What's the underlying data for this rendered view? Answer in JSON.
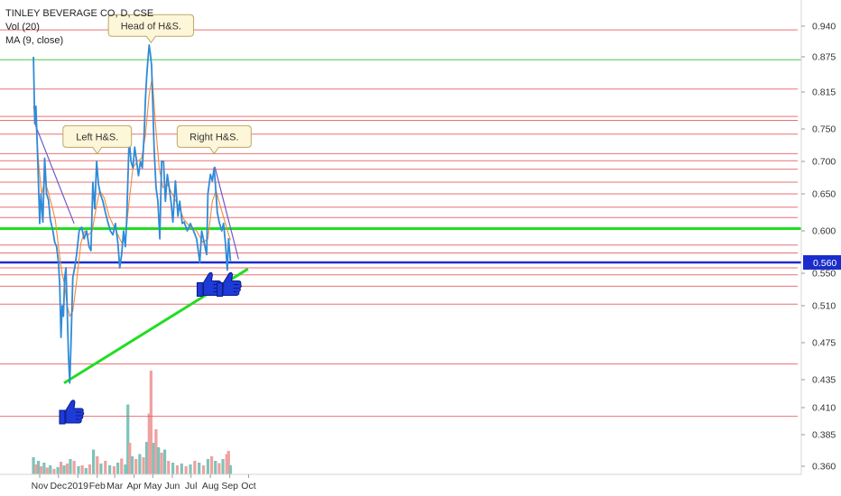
{
  "chart_data": {
    "type": "line",
    "title": "TINLEY BEVERAGE CO, D, CSE",
    "indicators": [
      "Vol (20)",
      "MA (9, close)"
    ],
    "x_ticks": [
      "Nov",
      "Dec",
      "2019",
      "Feb",
      "Mar",
      "Apr",
      "May",
      "Jun",
      "Jul",
      "Aug",
      "Sep",
      "Oct"
    ],
    "y_ticks": [
      "0.940",
      "0.875",
      "0.815",
      "0.750",
      "0.700",
      "0.650",
      "0.600",
      "0.560",
      "0.550",
      "0.510",
      "0.475",
      "0.435",
      "0.410",
      "0.385",
      "0.360"
    ],
    "last_price": "0.560",
    "colors": {
      "price": "#2f8bd8",
      "ma": "#f08a3c",
      "resistance": "#e8585a",
      "support_green": "#22dd22",
      "support_blue": "#1a2dcc",
      "trend_purple": "#6a5acd",
      "vol_up": "#7cc4b8",
      "vol_down": "#f0a0a0",
      "thumb": "#1e3bd8"
    },
    "annotations": [
      {
        "text": "Left H&S.",
        "date": "2019-02-01",
        "price": 0.712
      },
      {
        "text": "Head of H&S.",
        "date": "2019-04-28",
        "price": 0.905
      },
      {
        "text": "Right H&S.",
        "date": "2019-08-07",
        "price": 0.712
      }
    ],
    "thumbs_up": [
      {
        "date": "2018-12-20",
        "price": 0.405
      },
      {
        "date": "2019-07-28",
        "price": 0.535
      },
      {
        "date": "2019-08-29",
        "price": 0.535
      }
    ],
    "hlines": {
      "green": 0.603,
      "blue": 0.56,
      "light_green": 0.87
    },
    "red_hlines": [
      0.932,
      0.82,
      0.772,
      0.765,
      0.742,
      0.712,
      0.701,
      0.688,
      0.668,
      0.65,
      0.632,
      0.618,
      0.582,
      0.572,
      0.555,
      0.548,
      0.534,
      0.512,
      0.452,
      0.402
    ],
    "trendlines": [
      {
        "name": "support",
        "from": {
          "date": "2018-12-10",
          "price": 0.432
        },
        "to": {
          "date": "2019-09-30",
          "price": 0.554
        }
      },
      {
        "name": "down-left",
        "from": {
          "date": "2018-10-24",
          "price": 0.76
        },
        "to": {
          "date": "2018-12-26",
          "price": 0.61
        }
      },
      {
        "name": "down-right",
        "from": {
          "date": "2019-08-08",
          "price": 0.692
        },
        "to": {
          "date": "2019-09-15",
          "price": 0.564
        }
      }
    ],
    "series": [
      {
        "name": "Price",
        "points": [
          [
            "2018-10-22",
            0.875
          ],
          [
            "2018-10-24",
            0.76
          ],
          [
            "2018-10-26",
            0.79
          ],
          [
            "2018-10-29",
            0.7
          ],
          [
            "2018-11-01",
            0.61
          ],
          [
            "2018-11-03",
            0.65
          ],
          [
            "2018-11-06",
            0.612
          ],
          [
            "2018-11-09",
            0.705
          ],
          [
            "2018-11-12",
            0.65
          ],
          [
            "2018-11-15",
            0.642
          ],
          [
            "2018-11-18",
            0.615
          ],
          [
            "2018-11-22",
            0.6
          ],
          [
            "2018-11-25",
            0.586
          ],
          [
            "2018-11-28",
            0.58
          ],
          [
            "2018-12-01",
            0.56
          ],
          [
            "2018-12-03",
            0.535
          ],
          [
            "2018-12-05",
            0.48
          ],
          [
            "2018-12-07",
            0.51
          ],
          [
            "2018-12-09",
            0.5
          ],
          [
            "2018-12-11",
            0.545
          ],
          [
            "2018-12-13",
            0.555
          ],
          [
            "2018-12-15",
            0.505
          ],
          [
            "2018-12-17",
            0.46
          ],
          [
            "2018-12-19",
            0.432
          ],
          [
            "2018-12-21",
            0.475
          ],
          [
            "2018-12-24",
            0.545
          ],
          [
            "2018-12-27",
            0.555
          ],
          [
            "2018-12-30",
            0.57
          ],
          [
            "2019-01-03",
            0.6
          ],
          [
            "2019-01-07",
            0.605
          ],
          [
            "2019-01-11",
            0.59
          ],
          [
            "2019-01-15",
            0.6
          ],
          [
            "2019-01-19",
            0.58
          ],
          [
            "2019-01-22",
            0.575
          ],
          [
            "2019-01-25",
            0.668
          ],
          [
            "2019-01-28",
            0.63
          ],
          [
            "2019-01-31",
            0.7
          ],
          [
            "2019-02-03",
            0.665
          ],
          [
            "2019-02-06",
            0.65
          ],
          [
            "2019-02-10",
            0.64
          ],
          [
            "2019-02-14",
            0.625
          ],
          [
            "2019-02-18",
            0.612
          ],
          [
            "2019-02-22",
            0.6
          ],
          [
            "2019-02-26",
            0.595
          ],
          [
            "2019-03-02",
            0.61
          ],
          [
            "2019-03-06",
            0.585
          ],
          [
            "2019-03-09",
            0.555
          ],
          [
            "2019-03-12",
            0.57
          ],
          [
            "2019-03-15",
            0.6
          ],
          [
            "2019-03-18",
            0.58
          ],
          [
            "2019-03-20",
            0.612
          ],
          [
            "2019-03-24",
            0.735
          ],
          [
            "2019-03-27",
            0.7
          ],
          [
            "2019-03-30",
            0.69
          ],
          [
            "2019-04-02",
            0.722
          ],
          [
            "2019-04-05",
            0.7
          ],
          [
            "2019-04-08",
            0.678
          ],
          [
            "2019-04-11",
            0.7
          ],
          [
            "2019-04-14",
            0.69
          ],
          [
            "2019-04-17",
            0.74
          ],
          [
            "2019-04-19",
            0.8
          ],
          [
            "2019-04-21",
            0.84
          ],
          [
            "2019-04-23",
            0.87
          ],
          [
            "2019-04-25",
            0.9
          ],
          [
            "2019-04-27",
            0.88
          ],
          [
            "2019-04-29",
            0.86
          ],
          [
            "2019-05-01",
            0.79
          ],
          [
            "2019-05-03",
            0.72
          ],
          [
            "2019-05-06",
            0.66
          ],
          [
            "2019-05-09",
            0.64
          ],
          [
            "2019-05-12",
            0.59
          ],
          [
            "2019-05-15",
            0.7
          ],
          [
            "2019-05-18",
            0.7
          ],
          [
            "2019-05-21",
            0.64
          ],
          [
            "2019-05-24",
            0.68
          ],
          [
            "2019-05-27",
            0.66
          ],
          [
            "2019-05-30",
            0.64
          ],
          [
            "2019-06-02",
            0.612
          ],
          [
            "2019-06-06",
            0.67
          ],
          [
            "2019-06-10",
            0.62
          ],
          [
            "2019-06-13",
            0.64
          ],
          [
            "2019-06-17",
            0.61
          ],
          [
            "2019-06-20",
            0.612
          ],
          [
            "2019-06-25",
            0.6
          ],
          [
            "2019-06-30",
            0.61
          ],
          [
            "2019-07-05",
            0.6
          ],
          [
            "2019-07-10",
            0.59
          ],
          [
            "2019-07-15",
            0.56
          ],
          [
            "2019-07-18",
            0.6
          ],
          [
            "2019-07-22",
            0.585
          ],
          [
            "2019-07-26",
            0.57
          ],
          [
            "2019-07-28",
            0.65
          ],
          [
            "2019-08-01",
            0.68
          ],
          [
            "2019-08-04",
            0.67
          ],
          [
            "2019-08-07",
            0.69
          ],
          [
            "2019-08-09",
            0.665
          ],
          [
            "2019-08-12",
            0.625
          ],
          [
            "2019-08-15",
            0.612
          ],
          [
            "2019-08-19",
            0.6
          ],
          [
            "2019-08-22",
            0.61
          ],
          [
            "2019-08-25",
            0.585
          ],
          [
            "2019-08-28",
            0.553
          ],
          [
            "2019-08-30",
            0.59
          ],
          [
            "2019-09-02",
            0.562
          ]
        ]
      },
      {
        "name": "MA (9, close)",
        "points": [
          [
            "2018-10-22",
            0.79
          ],
          [
            "2018-10-26",
            0.76
          ],
          [
            "2018-10-30",
            0.7
          ],
          [
            "2018-11-04",
            0.65
          ],
          [
            "2018-11-09",
            0.67
          ],
          [
            "2018-11-14",
            0.655
          ],
          [
            "2018-11-20",
            0.635
          ],
          [
            "2018-11-26",
            0.615
          ],
          [
            "2018-12-01",
            0.58
          ],
          [
            "2018-12-06",
            0.552
          ],
          [
            "2018-12-11",
            0.535
          ],
          [
            "2018-12-15",
            0.51
          ],
          [
            "2018-12-19",
            0.5
          ],
          [
            "2018-12-24",
            0.505
          ],
          [
            "2018-12-30",
            0.54
          ],
          [
            "2019-01-06",
            0.585
          ],
          [
            "2019-01-12",
            0.6
          ],
          [
            "2019-01-18",
            0.595
          ],
          [
            "2019-01-24",
            0.6
          ],
          [
            "2019-01-30",
            0.63
          ],
          [
            "2019-02-05",
            0.655
          ],
          [
            "2019-02-12",
            0.645
          ],
          [
            "2019-02-20",
            0.62
          ],
          [
            "2019-02-28",
            0.605
          ],
          [
            "2019-03-06",
            0.595
          ],
          [
            "2019-03-12",
            0.585
          ],
          [
            "2019-03-18",
            0.59
          ],
          [
            "2019-03-24",
            0.64
          ],
          [
            "2019-03-30",
            0.69
          ],
          [
            "2019-04-06",
            0.7
          ],
          [
            "2019-04-13",
            0.705
          ],
          [
            "2019-04-19",
            0.74
          ],
          [
            "2019-04-25",
            0.81
          ],
          [
            "2019-04-30",
            0.84
          ],
          [
            "2019-05-05",
            0.76
          ],
          [
            "2019-05-11",
            0.69
          ],
          [
            "2019-05-17",
            0.66
          ],
          [
            "2019-05-24",
            0.665
          ],
          [
            "2019-06-01",
            0.65
          ],
          [
            "2019-06-10",
            0.635
          ],
          [
            "2019-06-20",
            0.615
          ],
          [
            "2019-06-30",
            0.605
          ],
          [
            "2019-07-10",
            0.6
          ],
          [
            "2019-07-20",
            0.585
          ],
          [
            "2019-07-28",
            0.59
          ],
          [
            "2019-08-04",
            0.64
          ],
          [
            "2019-08-10",
            0.655
          ],
          [
            "2019-08-18",
            0.63
          ],
          [
            "2019-08-25",
            0.61
          ],
          [
            "2019-09-02",
            0.588
          ]
        ]
      }
    ],
    "volume": [
      [
        "2018-10-22",
        0.38,
        1
      ],
      [
        "2018-10-26",
        0.22,
        0
      ],
      [
        "2018-10-30",
        0.3,
        1
      ],
      [
        "2018-11-03",
        0.18,
        0
      ],
      [
        "2018-11-08",
        0.26,
        1
      ],
      [
        "2018-11-13",
        0.15,
        0
      ],
      [
        "2018-11-18",
        0.2,
        1
      ],
      [
        "2018-11-24",
        0.12,
        0
      ],
      [
        "2018-11-30",
        0.16,
        1
      ],
      [
        "2018-12-05",
        0.28,
        0
      ],
      [
        "2018-12-10",
        0.2,
        1
      ],
      [
        "2018-12-15",
        0.24,
        0
      ],
      [
        "2018-12-20",
        0.34,
        1
      ],
      [
        "2018-12-26",
        0.3,
        0
      ],
      [
        "2019-01-02",
        0.18,
        1
      ],
      [
        "2019-01-08",
        0.2,
        0
      ],
      [
        "2019-01-14",
        0.14,
        1
      ],
      [
        "2019-01-20",
        0.22,
        0
      ],
      [
        "2019-01-26",
        0.55,
        1
      ],
      [
        "2019-02-01",
        0.4,
        0
      ],
      [
        "2019-02-07",
        0.24,
        1
      ],
      [
        "2019-02-14",
        0.3,
        0
      ],
      [
        "2019-02-21",
        0.2,
        1
      ],
      [
        "2019-02-28",
        0.18,
        0
      ],
      [
        "2019-03-06",
        0.26,
        1
      ],
      [
        "2019-03-12",
        0.35,
        0
      ],
      [
        "2019-03-18",
        0.22,
        1
      ],
      [
        "2019-03-22",
        1.55,
        1
      ],
      [
        "2019-03-25",
        0.7,
        0
      ],
      [
        "2019-03-29",
        0.4,
        1
      ],
      [
        "2019-04-04",
        0.34,
        0
      ],
      [
        "2019-04-10",
        0.45,
        1
      ],
      [
        "2019-04-16",
        0.38,
        0
      ],
      [
        "2019-04-21",
        0.72,
        1
      ],
      [
        "2019-04-25",
        1.35,
        0
      ],
      [
        "2019-04-28",
        2.3,
        0
      ],
      [
        "2019-05-02",
        0.7,
        1
      ],
      [
        "2019-05-06",
        1.0,
        0
      ],
      [
        "2019-05-10",
        0.6,
        1
      ],
      [
        "2019-05-15",
        0.48,
        0
      ],
      [
        "2019-05-20",
        0.55,
        1
      ],
      [
        "2019-05-26",
        0.3,
        0
      ],
      [
        "2019-06-02",
        0.26,
        1
      ],
      [
        "2019-06-09",
        0.2,
        0
      ],
      [
        "2019-06-16",
        0.24,
        1
      ],
      [
        "2019-06-23",
        0.18,
        0
      ],
      [
        "2019-06-30",
        0.22,
        1
      ],
      [
        "2019-07-07",
        0.3,
        0
      ],
      [
        "2019-07-14",
        0.26,
        1
      ],
      [
        "2019-07-21",
        0.2,
        0
      ],
      [
        "2019-07-28",
        0.34,
        1
      ],
      [
        "2019-08-03",
        0.4,
        0
      ],
      [
        "2019-08-09",
        0.3,
        1
      ],
      [
        "2019-08-15",
        0.25,
        0
      ],
      [
        "2019-08-21",
        0.34,
        1
      ],
      [
        "2019-08-27",
        0.45,
        0
      ],
      [
        "2019-08-30",
        0.52,
        0
      ],
      [
        "2019-09-02",
        0.2,
        1
      ]
    ]
  }
}
